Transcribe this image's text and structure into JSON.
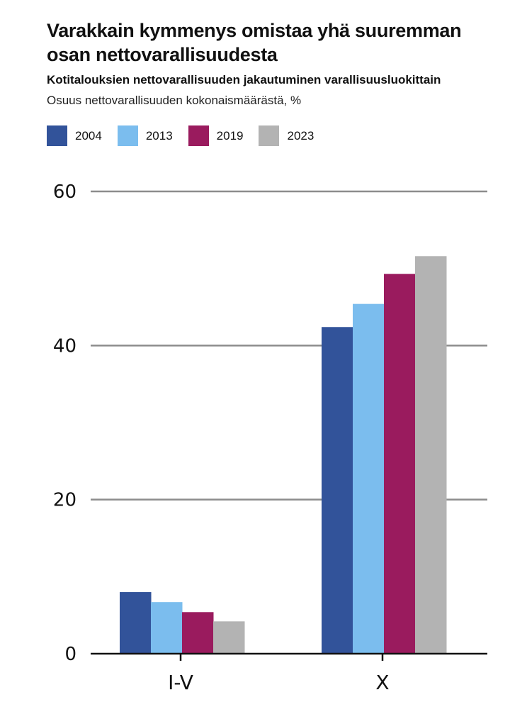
{
  "header": {
    "title": "Varakkain kymmenys omistaa yhä suuremman osan nettovarallisuudesta",
    "subtitle": "Kotitalouksien nettovarallisuuden jakautuminen varallisuusluokittain",
    "unit_note": "Osuus nettovarallisuuden kokonaismäärästä, %"
  },
  "chart_data": {
    "type": "bar",
    "title": "Varakkain kymmenys omistaa yhä suuremman osan nettovarallisuudesta",
    "subtitle": "Kotitalouksien nettovarallisuuden jakautuminen varallisuusluokittain",
    "ylabel": "Osuus nettovarallisuuden kokonaismäärästä, %",
    "xlabel": "",
    "categories": [
      "I-V",
      "X"
    ],
    "series": [
      {
        "name": "2004",
        "color": "#32539a",
        "values": [
          8.0,
          42.4
        ]
      },
      {
        "name": "2013",
        "color": "#7bbdee",
        "values": [
          6.7,
          45.4
        ]
      },
      {
        "name": "2019",
        "color": "#9a1b5e",
        "values": [
          5.4,
          49.3
        ]
      },
      {
        "name": "2023",
        "color": "#b3b3b3",
        "values": [
          4.2,
          51.6
        ]
      }
    ],
    "ylim": [
      0,
      60
    ],
    "yticks": [
      "0",
      "20",
      "40",
      "60"
    ],
    "grid": true,
    "legend": "top-left"
  }
}
